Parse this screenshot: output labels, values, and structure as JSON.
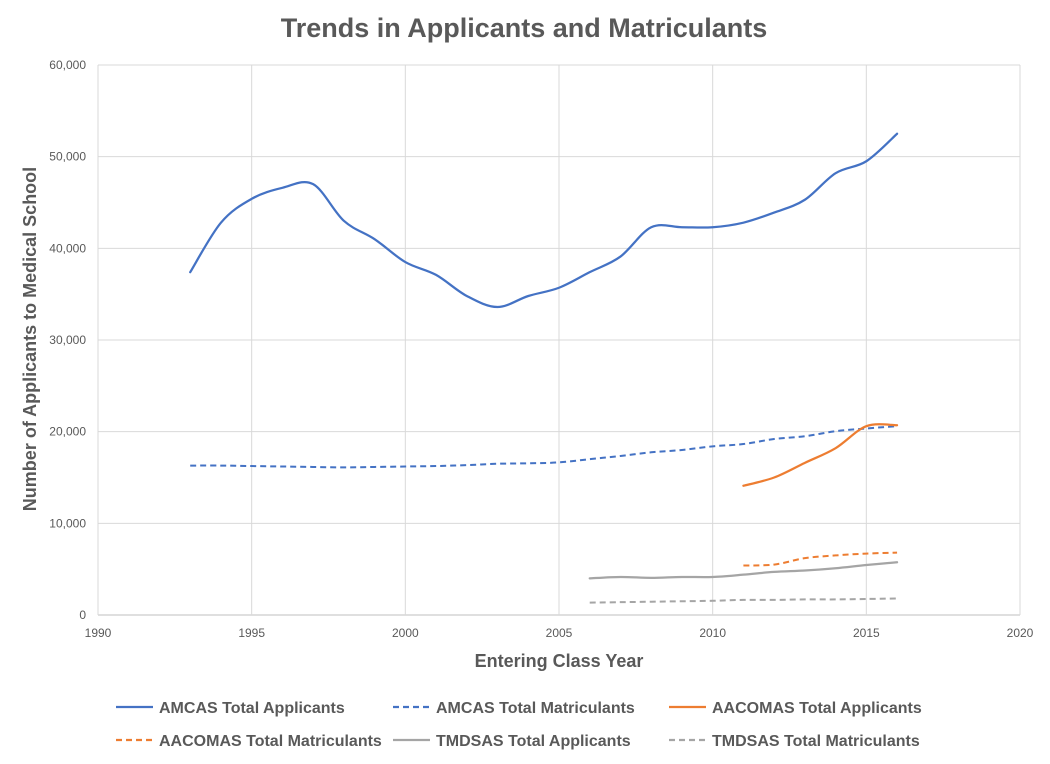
{
  "chart_data": {
    "type": "line",
    "title": "Trends in Applicants and Matriculants",
    "xlabel": "Entering Class Year",
    "ylabel": "Number of Applicants to Medical School",
    "xlim": [
      1990,
      2020
    ],
    "ylim": [
      0,
      60000
    ],
    "x_ticks": [
      1990,
      1995,
      2000,
      2005,
      2010,
      2015,
      2020
    ],
    "y_ticks": [
      0,
      10000,
      20000,
      30000,
      40000,
      50000,
      60000
    ],
    "x_tick_labels": [
      "1990",
      "1995",
      "2000",
      "2005",
      "2010",
      "2015",
      "2020"
    ],
    "y_tick_labels": [
      "0",
      "10,000",
      "20,000",
      "30,000",
      "40,000",
      "50,000",
      "60,000"
    ],
    "grid": true,
    "legend_position": "bottom",
    "series": [
      {
        "name": "AMCAS Total Applicants",
        "color": "#4472c4",
        "style": "solid",
        "points": [
          [
            1993,
            37400
          ],
          [
            1994,
            42800
          ],
          [
            1995,
            45400
          ],
          [
            1996,
            46600
          ],
          [
            1997,
            47000
          ],
          [
            1998,
            43000
          ],
          [
            1999,
            41000
          ],
          [
            2000,
            38500
          ],
          [
            2001,
            37100
          ],
          [
            2002,
            34800
          ],
          [
            2003,
            33600
          ],
          [
            2004,
            34800
          ],
          [
            2005,
            35700
          ],
          [
            2006,
            37400
          ],
          [
            2007,
            39100
          ],
          [
            2008,
            42300
          ],
          [
            2009,
            42300
          ],
          [
            2010,
            42300
          ],
          [
            2011,
            42800
          ],
          [
            2012,
            43900
          ],
          [
            2013,
            45300
          ],
          [
            2014,
            48200
          ],
          [
            2015,
            49500
          ],
          [
            2016,
            52500
          ]
        ]
      },
      {
        "name": "AMCAS Total Matriculants",
        "color": "#4472c4",
        "style": "dashed",
        "points": [
          [
            1993,
            16300
          ],
          [
            1994,
            16300
          ],
          [
            1995,
            16250
          ],
          [
            1996,
            16200
          ],
          [
            1997,
            16150
          ],
          [
            1998,
            16100
          ],
          [
            1999,
            16150
          ],
          [
            2000,
            16200
          ],
          [
            2001,
            16250
          ],
          [
            2002,
            16350
          ],
          [
            2003,
            16500
          ],
          [
            2004,
            16550
          ],
          [
            2005,
            16650
          ],
          [
            2006,
            17000
          ],
          [
            2007,
            17350
          ],
          [
            2008,
            17750
          ],
          [
            2009,
            18000
          ],
          [
            2010,
            18400
          ],
          [
            2011,
            18650
          ],
          [
            2012,
            19200
          ],
          [
            2013,
            19500
          ],
          [
            2014,
            20050
          ],
          [
            2015,
            20350
          ],
          [
            2016,
            20600
          ]
        ]
      },
      {
        "name": "AACOMAS Total Applicants",
        "color": "#ed7d31",
        "style": "solid",
        "points": [
          [
            2011,
            14100
          ],
          [
            2012,
            15000
          ],
          [
            2013,
            16600
          ],
          [
            2014,
            18200
          ],
          [
            2015,
            20600
          ],
          [
            2016,
            20700
          ]
        ]
      },
      {
        "name": "AACOMAS Total Matriculants",
        "color": "#ed7d31",
        "style": "dashed",
        "points": [
          [
            2011,
            5400
          ],
          [
            2012,
            5500
          ],
          [
            2013,
            6200
          ],
          [
            2014,
            6500
          ],
          [
            2015,
            6700
          ],
          [
            2016,
            6800
          ]
        ]
      },
      {
        "name": "TMDSAS Total Applicants",
        "color": "#a5a5a5",
        "style": "solid",
        "points": [
          [
            2006,
            4000
          ],
          [
            2007,
            4150
          ],
          [
            2008,
            4050
          ],
          [
            2009,
            4150
          ],
          [
            2010,
            4150
          ],
          [
            2011,
            4400
          ],
          [
            2012,
            4700
          ],
          [
            2013,
            4850
          ],
          [
            2014,
            5100
          ],
          [
            2015,
            5450
          ],
          [
            2016,
            5750
          ]
        ]
      },
      {
        "name": "TMDSAS Total Matriculants",
        "color": "#a5a5a5",
        "style": "dashed",
        "points": [
          [
            2006,
            1350
          ],
          [
            2007,
            1400
          ],
          [
            2008,
            1450
          ],
          [
            2009,
            1500
          ],
          [
            2010,
            1550
          ],
          [
            2011,
            1650
          ],
          [
            2012,
            1650
          ],
          [
            2013,
            1700
          ],
          [
            2014,
            1700
          ],
          [
            2015,
            1750
          ],
          [
            2016,
            1800
          ]
        ]
      }
    ]
  }
}
